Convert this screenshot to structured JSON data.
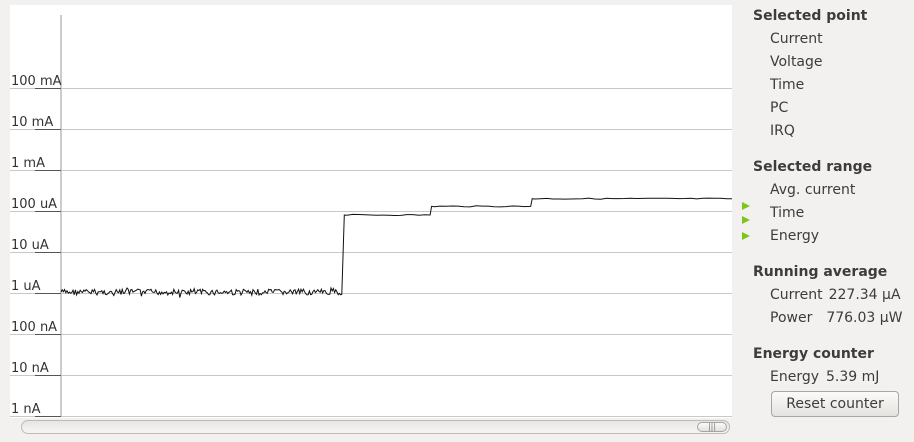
{
  "chart_data": {
    "type": "line",
    "y_scale": "log",
    "y_tick_labels": [
      "100 mA",
      "10 mA",
      "1 mA",
      "100 uA",
      "10 uA",
      "1 uA",
      "100 nA",
      "10 nA",
      "1 nA"
    ],
    "grid": true,
    "series": [
      {
        "segments": [
          {
            "start": 0.0,
            "end": 0.42,
            "current_uA": 1.05,
            "noisy": true
          },
          {
            "start": 0.42,
            "end": 0.55,
            "current_uA": 80
          },
          {
            "start": 0.55,
            "end": 0.7,
            "current_uA": 130
          },
          {
            "start": 0.7,
            "end": 1.0,
            "current_uA": 200
          }
        ]
      }
    ]
  },
  "side_panel": {
    "selected_point": {
      "title": "Selected point",
      "items": [
        "Current",
        "Voltage",
        "Time",
        "PC",
        "IRQ"
      ]
    },
    "selected_range": {
      "title": "Selected range",
      "items": [
        "Avg. current",
        "Time",
        "Energy"
      ]
    },
    "running_average": {
      "title": "Running average",
      "current_label": "Current",
      "current_value": "227.34 µA",
      "power_label": "Power",
      "power_value": "776.03 µW"
    },
    "energy_counter": {
      "title": "Energy counter",
      "energy_label": "Energy",
      "energy_value": "5.39 mJ",
      "reset_label": "Reset counter"
    }
  },
  "scrollbar": {
    "thumb_glyph": "|||"
  }
}
